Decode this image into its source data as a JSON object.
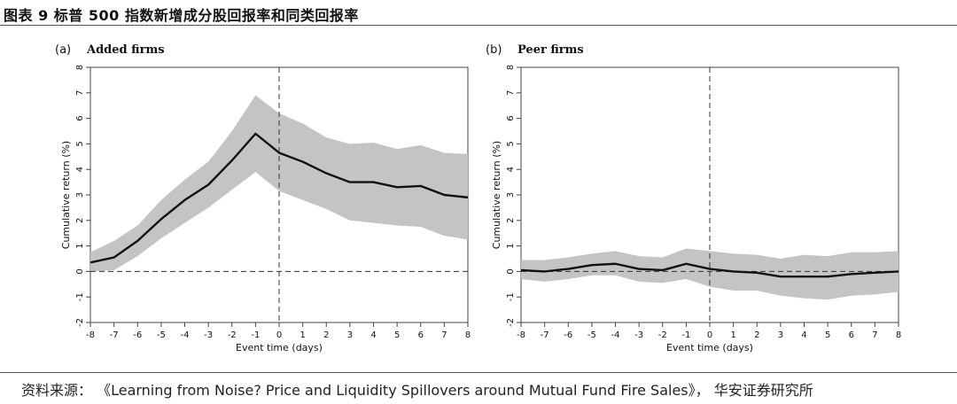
{
  "figure": {
    "title": "图表 9 标普 500 指数新增成分股回报率和同类回报率",
    "source": "资料来源： 《Learning from Noise? Price and Liquidity Spillovers around Mutual Fund Fire Sales》， 华安证券研究所"
  },
  "chart_data": [
    {
      "type": "line",
      "panel_letter": "(a)",
      "title": "Added firms",
      "xlabel": "Event time (days)",
      "ylabel": "Cumulative return (%)",
      "x": [
        -8,
        -7,
        -6,
        -5,
        -4,
        -3,
        -2,
        -1,
        0,
        1,
        2,
        3,
        4,
        5,
        6,
        7,
        8
      ],
      "series": [
        {
          "name": "mean",
          "values": [
            0.35,
            0.55,
            1.2,
            2.05,
            2.8,
            3.4,
            4.35,
            5.4,
            4.65,
            4.3,
            3.85,
            3.5,
            3.5,
            3.3,
            3.35,
            3.0,
            2.9
          ]
        },
        {
          "name": "upper",
          "values": [
            0.75,
            1.2,
            1.8,
            2.8,
            3.6,
            4.3,
            5.5,
            6.9,
            6.2,
            5.8,
            5.25,
            5.0,
            5.05,
            4.8,
            4.95,
            4.65,
            4.6
          ]
        },
        {
          "name": "lower",
          "values": [
            0.0,
            0.05,
            0.6,
            1.3,
            1.9,
            2.5,
            3.2,
            3.9,
            3.15,
            2.8,
            2.45,
            2.0,
            1.9,
            1.8,
            1.75,
            1.4,
            1.25
          ]
        }
      ],
      "xlim": [
        -8,
        8
      ],
      "ylim": [
        -2,
        8
      ],
      "yticks": [
        -2,
        -1,
        0,
        1,
        2,
        3,
        4,
        5,
        6,
        7,
        8
      ],
      "xticks": [
        -8,
        -7,
        -6,
        -5,
        -4,
        -3,
        -2,
        -1,
        0,
        1,
        2,
        3,
        4,
        5,
        6,
        7,
        8
      ],
      "reference_lines": {
        "y": 0,
        "x": 0
      },
      "grid": false
    },
    {
      "type": "line",
      "panel_letter": "(b)",
      "title": "Peer firms",
      "xlabel": "Event time (days)",
      "ylabel": "Cumulative return (%)",
      "x": [
        -8,
        -7,
        -6,
        -5,
        -4,
        -3,
        -2,
        -1,
        0,
        1,
        2,
        3,
        4,
        5,
        6,
        7,
        8
      ],
      "series": [
        {
          "name": "mean",
          "values": [
            0.05,
            0.0,
            0.1,
            0.25,
            0.3,
            0.1,
            0.05,
            0.3,
            0.1,
            0.0,
            -0.05,
            -0.2,
            -0.2,
            -0.2,
            -0.1,
            -0.05,
            0.0
          ]
        },
        {
          "name": "upper",
          "values": [
            0.45,
            0.45,
            0.55,
            0.7,
            0.8,
            0.6,
            0.55,
            0.9,
            0.8,
            0.7,
            0.65,
            0.5,
            0.65,
            0.6,
            0.75,
            0.75,
            0.8
          ]
        },
        {
          "name": "lower",
          "values": [
            -0.3,
            -0.4,
            -0.3,
            -0.15,
            -0.15,
            -0.4,
            -0.45,
            -0.3,
            -0.6,
            -0.75,
            -0.75,
            -0.95,
            -1.05,
            -1.1,
            -0.95,
            -0.9,
            -0.8
          ]
        }
      ],
      "xlim": [
        -8,
        8
      ],
      "ylim": [
        -2,
        8
      ],
      "yticks": [
        -2,
        -1,
        0,
        1,
        2,
        3,
        4,
        5,
        6,
        7,
        8
      ],
      "xticks": [
        -8,
        -7,
        -6,
        -5,
        -4,
        -3,
        -2,
        -1,
        0,
        1,
        2,
        3,
        4,
        5,
        6,
        7,
        8
      ],
      "reference_lines": {
        "y": 0,
        "x": 0
      },
      "grid": false
    }
  ]
}
